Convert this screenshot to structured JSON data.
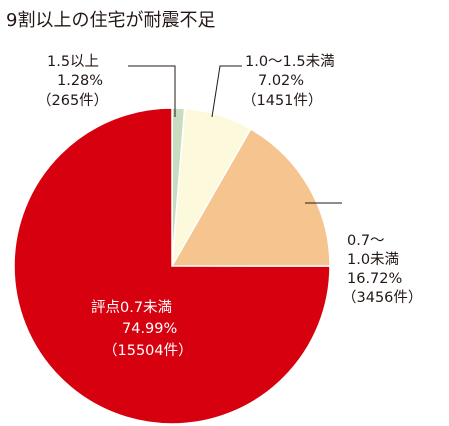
{
  "chart_data": {
    "type": "pie",
    "title": "9割以上の住宅が耐震不足",
    "start": "12 o'clock, clockwise",
    "slices": [
      {
        "label": "1.5以上",
        "percent": 1.28,
        "count": "（265件）",
        "color": "#c8dcc0"
      },
      {
        "label": "1.0〜1.5未満",
        "percent": 7.02,
        "count": "（1451件）",
        "color": "#fdf9dd"
      },
      {
        "label": "0.7〜",
        "label2": "1.0未満",
        "percent": 16.72,
        "count": "（3456件）",
        "color": "#f6c48e"
      },
      {
        "label": "評点0.7未満",
        "percent": 74.99,
        "count": "（15504件）",
        "color": "#d7000f"
      }
    ],
    "percent_strings": [
      "1.28%",
      "7.02%",
      "16.72%",
      "74.99%"
    ]
  }
}
